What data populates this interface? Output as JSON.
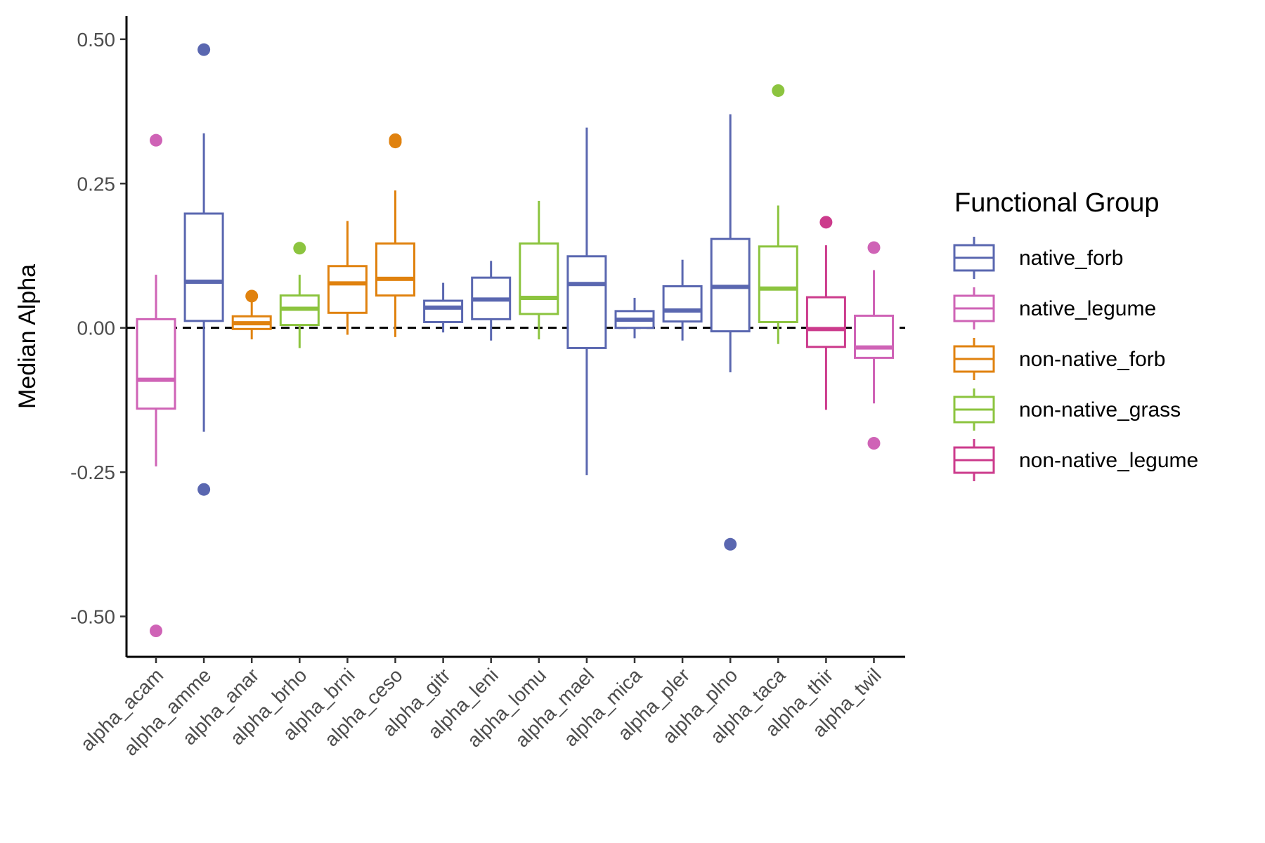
{
  "chart_data": {
    "type": "box",
    "title": "",
    "xlabel": "",
    "ylabel": "Median Alpha",
    "ylim": [
      -0.57,
      0.54
    ],
    "y_ticks": [
      0.5,
      0.25,
      0.0,
      -0.25,
      -0.5
    ],
    "y_tick_labels": [
      "0.50",
      "0.25",
      "0.00",
      "-0.25",
      "-0.50"
    ],
    "reference_line": {
      "y": 0,
      "style": "dashed",
      "color": "#000000"
    },
    "legend": {
      "title": "Functional Group",
      "placement": "right",
      "items": [
        {
          "label": "native_forb",
          "color": "#5a67b0"
        },
        {
          "label": "native_legume",
          "color": "#cf63b6"
        },
        {
          "label": "non-native_forb",
          "color": "#e0820f"
        },
        {
          "label": "non-native_grass",
          "color": "#8cc43f"
        },
        {
          "label": "non-native_legume",
          "color": "#cc3b8c"
        }
      ]
    },
    "categories": [
      "alpha_acam",
      "alpha_amme",
      "alpha_anar",
      "alpha_brho",
      "alpha_brni",
      "alpha_ceso",
      "alpha_gitr",
      "alpha_leni",
      "alpha_lomu",
      "alpha_mael",
      "alpha_mica",
      "alpha_pler",
      "alpha_plno",
      "alpha_taca",
      "alpha_thir",
      "alpha_twil"
    ],
    "boxes": [
      {
        "category": "alpha_acam",
        "group": "native_legume",
        "whisker_low": -0.24,
        "q1": -0.14,
        "median": -0.09,
        "q3": 0.015,
        "whisker_high": 0.092,
        "outliers": [
          0.325,
          -0.525
        ]
      },
      {
        "category": "alpha_amme",
        "group": "native_forb",
        "whisker_low": -0.18,
        "q1": 0.012,
        "median": 0.08,
        "q3": 0.198,
        "whisker_high": 0.337,
        "outliers": [
          0.482,
          -0.28
        ]
      },
      {
        "category": "alpha_anar",
        "group": "non-native_forb",
        "whisker_low": -0.02,
        "q1": -0.002,
        "median": 0.008,
        "q3": 0.02,
        "whisker_high": 0.045,
        "outliers": [
          0.055
        ]
      },
      {
        "category": "alpha_brho",
        "group": "non-native_grass",
        "whisker_low": -0.035,
        "q1": 0.005,
        "median": 0.033,
        "q3": 0.056,
        "whisker_high": 0.092,
        "outliers": [
          0.138
        ]
      },
      {
        "category": "alpha_brni",
        "group": "non-native_forb",
        "whisker_low": -0.012,
        "q1": 0.026,
        "median": 0.077,
        "q3": 0.107,
        "whisker_high": 0.185,
        "outliers": []
      },
      {
        "category": "alpha_ceso",
        "group": "non-native_forb",
        "whisker_low": -0.016,
        "q1": 0.056,
        "median": 0.085,
        "q3": 0.146,
        "whisker_high": 0.238,
        "outliers": [
          0.322,
          0.326
        ]
      },
      {
        "category": "alpha_gitr",
        "group": "native_forb",
        "whisker_low": -0.008,
        "q1": 0.01,
        "median": 0.035,
        "q3": 0.047,
        "whisker_high": 0.078,
        "outliers": []
      },
      {
        "category": "alpha_leni",
        "group": "native_forb",
        "whisker_low": -0.022,
        "q1": 0.015,
        "median": 0.049,
        "q3": 0.087,
        "whisker_high": 0.116,
        "outliers": []
      },
      {
        "category": "alpha_lomu",
        "group": "non-native_grass",
        "whisker_low": -0.02,
        "q1": 0.024,
        "median": 0.052,
        "q3": 0.146,
        "whisker_high": 0.22,
        "outliers": []
      },
      {
        "category": "alpha_mael",
        "group": "native_forb",
        "whisker_low": -0.255,
        "q1": -0.035,
        "median": 0.076,
        "q3": 0.124,
        "whisker_high": 0.347,
        "outliers": []
      },
      {
        "category": "alpha_mica",
        "group": "native_forb",
        "whisker_low": -0.018,
        "q1": 0.0,
        "median": 0.014,
        "q3": 0.029,
        "whisker_high": 0.052,
        "outliers": []
      },
      {
        "category": "alpha_pler",
        "group": "native_forb",
        "whisker_low": -0.022,
        "q1": 0.011,
        "median": 0.03,
        "q3": 0.072,
        "whisker_high": 0.118,
        "outliers": []
      },
      {
        "category": "alpha_plno",
        "group": "native_forb",
        "whisker_low": -0.077,
        "q1": -0.006,
        "median": 0.071,
        "q3": 0.154,
        "whisker_high": 0.37,
        "outliers": [
          -0.375
        ]
      },
      {
        "category": "alpha_taca",
        "group": "non-native_grass",
        "whisker_low": -0.028,
        "q1": 0.01,
        "median": 0.068,
        "q3": 0.141,
        "whisker_high": 0.212,
        "outliers": [
          0.411
        ]
      },
      {
        "category": "alpha_thir",
        "group": "non-native_legume",
        "whisker_low": -0.142,
        "q1": -0.033,
        "median": -0.002,
        "q3": 0.053,
        "whisker_high": 0.143,
        "outliers": [
          0.183
        ]
      },
      {
        "category": "alpha_twil",
        "group": "native_legume",
        "whisker_low": -0.131,
        "q1": -0.052,
        "median": -0.034,
        "q3": 0.021,
        "whisker_high": 0.1,
        "outliers": [
          0.139,
          -0.2
        ]
      }
    ]
  }
}
